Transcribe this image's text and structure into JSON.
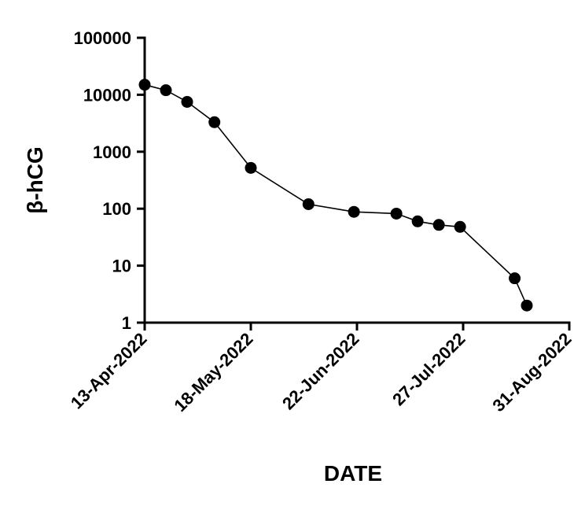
{
  "chart_data": {
    "type": "line",
    "title": "",
    "xlabel": "DATE",
    "ylabel": "β-hCG",
    "yscale": "log",
    "ylim": [
      1,
      100000
    ],
    "xlim": [
      "2022-04-13",
      "2022-08-31"
    ],
    "x_ticks": [
      "2022-04-13",
      "2022-05-18",
      "2022-06-22",
      "2022-07-27",
      "2022-08-31"
    ],
    "x_tick_labels": [
      "13-Apr-2022",
      "18-May-2022",
      "22-Jun-2022",
      "27-Jul-2022",
      "31-Aug-2022"
    ],
    "y_ticks": [
      1,
      10,
      100,
      1000,
      10000,
      100000
    ],
    "y_tick_labels": [
      "1",
      "10",
      "100",
      "1000",
      "10000",
      "100000"
    ],
    "grid": false,
    "legend": "none",
    "marker": "filled-circle",
    "color": "#000000",
    "series": [
      {
        "x": [
          "2022-04-13",
          "2022-04-20",
          "2022-04-27",
          "2022-05-06",
          "2022-05-18",
          "2022-06-06",
          "2022-06-21",
          "2022-07-05",
          "2022-07-12",
          "2022-07-19",
          "2022-07-26",
          "2022-08-13",
          "2022-08-17"
        ],
        "y": [
          15000,
          12000,
          7500,
          3300,
          520,
          120,
          88,
          82,
          60,
          52,
          48,
          6,
          2
        ]
      }
    ]
  }
}
